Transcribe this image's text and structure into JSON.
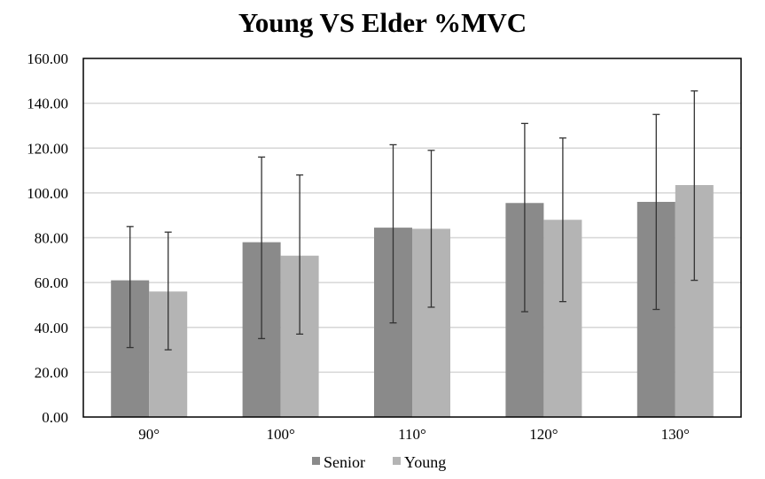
{
  "chart_data": {
    "type": "bar",
    "title": "Young VS Elder %MVC",
    "xlabel": "",
    "ylabel": "",
    "categories": [
      "90°",
      "100°",
      "110°",
      "120°",
      "130°"
    ],
    "ylim": [
      0,
      160
    ],
    "y_ticks": [
      "0.00",
      "20.00",
      "40.00",
      "60.00",
      "80.00",
      "100.00",
      "120.00",
      "140.00",
      "160.00"
    ],
    "grid": true,
    "legend_position": "bottom",
    "series": [
      {
        "name": "Senior",
        "color": "#8a8a8a",
        "values": [
          61,
          78,
          84.5,
          95.5,
          96
        ],
        "error_low": [
          31,
          35,
          42,
          47,
          48
        ],
        "error_high": [
          85,
          116,
          121.5,
          131,
          135
        ]
      },
      {
        "name": "Young",
        "color": "#b4b4b4",
        "values": [
          56,
          72,
          84,
          88,
          103.5
        ],
        "error_low": [
          30,
          37,
          49,
          51.5,
          61
        ],
        "error_high": [
          82.5,
          108,
          119,
          124.5,
          145.5
        ]
      }
    ]
  }
}
